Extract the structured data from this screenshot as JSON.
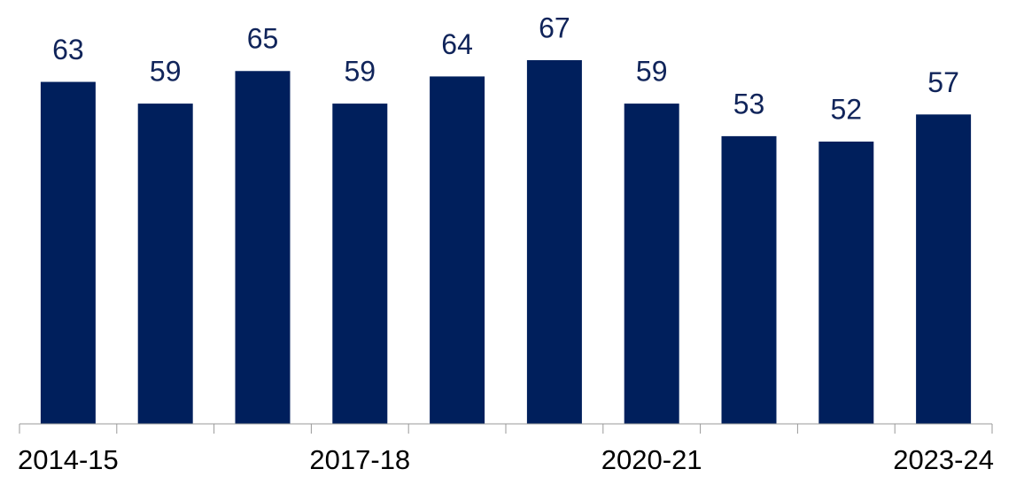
{
  "chart_data": {
    "type": "bar",
    "categories": [
      "2014-15",
      null,
      null,
      "2017-18",
      null,
      null,
      "2020-21",
      null,
      null,
      "2023-24"
    ],
    "values": [
      63,
      59,
      65,
      59,
      64,
      67,
      59,
      53,
      52,
      57
    ],
    "color": "#001f5c"
  }
}
